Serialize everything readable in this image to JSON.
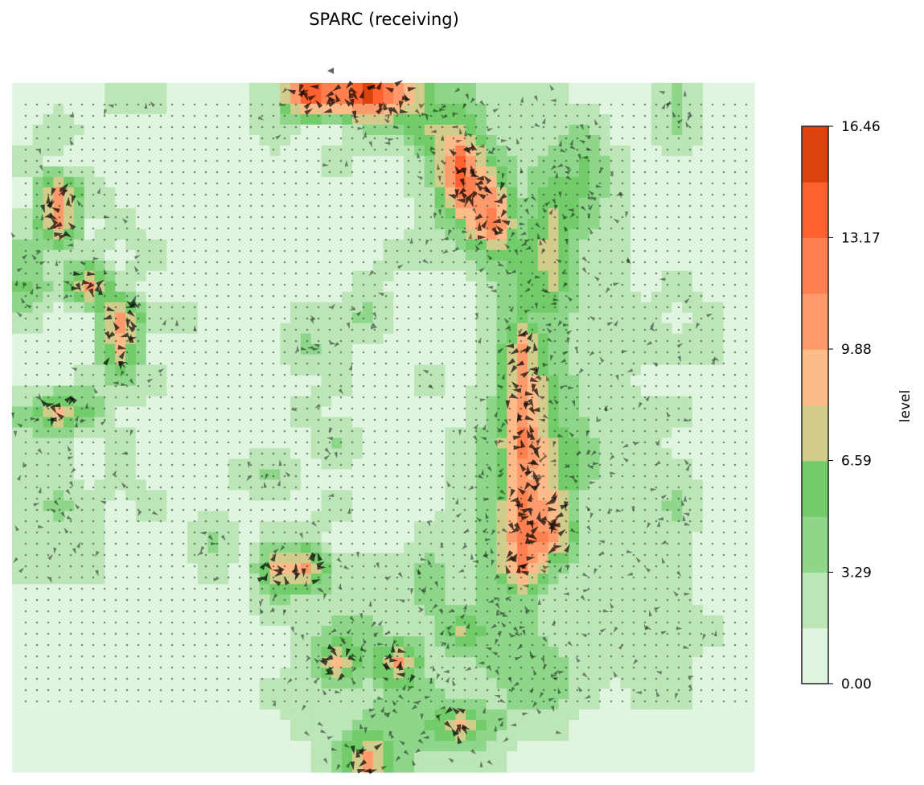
{
  "chart_data": {
    "type": "heatmap",
    "subtype": "filled-contour with quiver overlay",
    "title": "SPARC (receiving)",
    "colorbar": {
      "label": "level",
      "range": [
        0,
        16.46
      ],
      "ticks": [
        "0.00",
        "3.29",
        "6.59",
        "9.88",
        "13.17",
        "16.46"
      ],
      "levels": [
        0,
        1.646,
        3.292,
        4.938,
        6.584,
        8.23,
        9.876,
        11.522,
        13.168,
        14.814,
        16.46
      ],
      "colors": [
        "#e0f5e0",
        "#bce5b8",
        "#8dd68a",
        "#72cc6a",
        "#d1cc8c",
        "#fdbb8a",
        "#fd9a6b",
        "#fe8050",
        "#fe6130",
        "#dc4210"
      ]
    },
    "axes_visible": false,
    "grid_values_coarse": [
      [
        1,
        1,
        1,
        2.5,
        2.5,
        1,
        1,
        1,
        3,
        14,
        12,
        15,
        11,
        5,
        4,
        2.5,
        2.5,
        2.5,
        1,
        1,
        1,
        4,
        1,
        1
      ],
      [
        1,
        3,
        1,
        1,
        1,
        1,
        1,
        1,
        3,
        1,
        1,
        4,
        4,
        7,
        7.5,
        2.5,
        2.5,
        2.5,
        4,
        1,
        1,
        4,
        1,
        1
      ],
      [
        2.5,
        1,
        1,
        1,
        1,
        1,
        1,
        1,
        1,
        1,
        2.5,
        1,
        1,
        4,
        14,
        5,
        2.5,
        4,
        5,
        2.5,
        1,
        1,
        1,
        1
      ],
      [
        1,
        10,
        3,
        1,
        1,
        1,
        1,
        1,
        1,
        1,
        1,
        1,
        1,
        3,
        13,
        10,
        3,
        6,
        5,
        2.5,
        1,
        1,
        1,
        1
      ],
      [
        2.5,
        10,
        1,
        2.5,
        1,
        1,
        1,
        1,
        1,
        1,
        1,
        1,
        1,
        2.5,
        6,
        13,
        4,
        7.5,
        4,
        2.5,
        1,
        1,
        1,
        1
      ],
      [
        4,
        2.5,
        2.5,
        1,
        2.5,
        1,
        1,
        1,
        1,
        1,
        1,
        1,
        2.5,
        2.5,
        2.5,
        5,
        6,
        7.5,
        2.5,
        2.5,
        1,
        1,
        1,
        1
      ],
      [
        5,
        2.5,
        10,
        2.5,
        1,
        1,
        1,
        1,
        1,
        1,
        1,
        2.5,
        1,
        1,
        1,
        2.5,
        5,
        7,
        2.5,
        2.5,
        1,
        2.5,
        1,
        1
      ],
      [
        2.5,
        1,
        1,
        11,
        2.5,
        2.5,
        1,
        1,
        1,
        2.5,
        2.5,
        4,
        1,
        1,
        1,
        2.5,
        5,
        4,
        2.5,
        2.5,
        2.5,
        1,
        2.5,
        1
      ],
      [
        1,
        1,
        1,
        9,
        1,
        1,
        1,
        1,
        1,
        4,
        2.5,
        1,
        1,
        1,
        1,
        2.5,
        10,
        4,
        2.5,
        2.5,
        2.5,
        2.5,
        2.5,
        1
      ],
      [
        1,
        1,
        2.5,
        4,
        2.5,
        1,
        1,
        1,
        1,
        1,
        2.5,
        1,
        1,
        2.5,
        1,
        2.5,
        10,
        5,
        2.5,
        2.5,
        1,
        1,
        1,
        1
      ],
      [
        4,
        9,
        5,
        1,
        1,
        1,
        1,
        1,
        1,
        2.5,
        1,
        1,
        1,
        1,
        1,
        4,
        11,
        5,
        3,
        2.5,
        2.5,
        2.5,
        1,
        1
      ],
      [
        2.5,
        2.5,
        1,
        2.5,
        1,
        1,
        1,
        1,
        1,
        1,
        4,
        1,
        1,
        1,
        2.5,
        4,
        12,
        7,
        4,
        2.5,
        2.5,
        1,
        1,
        1
      ],
      [
        2.5,
        2.5,
        1,
        2.5,
        1,
        1,
        1,
        2.5,
        4,
        1,
        1,
        1,
        1,
        1,
        2.5,
        4,
        11,
        7.5,
        4,
        2.5,
        2.5,
        2.5,
        1,
        1
      ],
      [
        2.5,
        4,
        2.5,
        1,
        2.5,
        1,
        1,
        1,
        1,
        1,
        2.5,
        1,
        1,
        1,
        2.5,
        4,
        12,
        9,
        2.5,
        2.5,
        2.5,
        4,
        1,
        1
      ],
      [
        2.5,
        2.5,
        2.5,
        1,
        1,
        1,
        4,
        1,
        2.5,
        2.5,
        1,
        1,
        1,
        2.5,
        2.5,
        4,
        13,
        11,
        2.5,
        2.5,
        2.5,
        2.5,
        1,
        1
      ],
      [
        2.5,
        2.5,
        2.5,
        1,
        1,
        1,
        2.5,
        1,
        9,
        10,
        2.5,
        2.5,
        2.5,
        4,
        2.5,
        4,
        12,
        4,
        2.5,
        2.5,
        2.5,
        2.5,
        1,
        1
      ],
      [
        1,
        1,
        1,
        1,
        1,
        1,
        1,
        1,
        4,
        2.5,
        2.5,
        2.5,
        2.5,
        4,
        2.5,
        4,
        4,
        2.5,
        2.5,
        2.5,
        2.5,
        2.5,
        1,
        1
      ],
      [
        1,
        1,
        1,
        1,
        1,
        1,
        1,
        1,
        1,
        2.5,
        4,
        4,
        2.5,
        2.5,
        7,
        4,
        4,
        2.5,
        2.5,
        2.5,
        2.5,
        2.5,
        2.5,
        1
      ],
      [
        1,
        1,
        1,
        1,
        1,
        1,
        1,
        1,
        1,
        2.5,
        9,
        4,
        10,
        2.5,
        2.5,
        4,
        4,
        4,
        2.5,
        2.5,
        2.5,
        2.5,
        1,
        1
      ],
      [
        1,
        1,
        1,
        1,
        1,
        1,
        1,
        1,
        2.5,
        2.5,
        2.5,
        2.5,
        4,
        4,
        2.5,
        2.5,
        4,
        4,
        2.5,
        1,
        2.5,
        2.5,
        1,
        1
      ],
      [
        1,
        1,
        1,
        1,
        1,
        1,
        1,
        1,
        1,
        2.5,
        2.5,
        4,
        4,
        5,
        9,
        4,
        2.5,
        2.5,
        1,
        1,
        1,
        1,
        1,
        1
      ],
      [
        1,
        1,
        1,
        1,
        1,
        1,
        1,
        1,
        1,
        1,
        4,
        10,
        4,
        2.5,
        2.5,
        2.5,
        1,
        1,
        1,
        1,
        1,
        1,
        1,
        1
      ]
    ],
    "overlay": "quiver arrows (black, semi-transparent)"
  }
}
